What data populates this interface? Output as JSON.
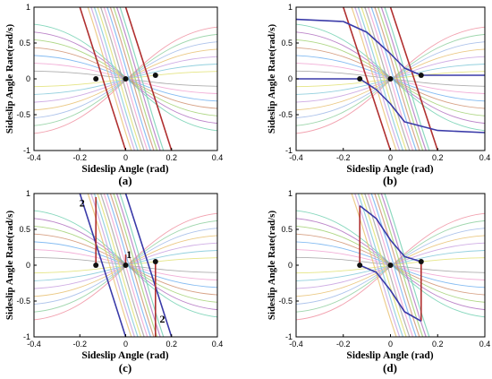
{
  "figure": {
    "panels": [
      {
        "id": "a",
        "caption": "(a)"
      },
      {
        "id": "b",
        "caption": "(b)"
      },
      {
        "id": "c",
        "caption": "(c)"
      },
      {
        "id": "d",
        "caption": "(d)"
      }
    ]
  },
  "chart_data": [
    {
      "type": "line",
      "caption": "(a)",
      "xlabel": "Sideslip Angle (rad)",
      "ylabel": "Sideslip Angle Rate(rad/s)",
      "xlim": [
        -0.4,
        0.4
      ],
      "ylim": [
        -1,
        1
      ],
      "xticks": [
        "-0.4",
        "-0.2",
        "0",
        "0.2",
        "0.4"
      ],
      "yticks": [
        "1",
        "0.5",
        "0",
        "-0.5",
        "-1"
      ],
      "series": [
        {
          "color": "#b03030",
          "style": "boundary-line",
          "x": [
            -0.2,
            0
          ],
          "y": [
            1,
            -1
          ]
        },
        {
          "color": "#b03030",
          "style": "boundary-line",
          "x": [
            0,
            0.2
          ],
          "y": [
            1,
            -1
          ]
        }
      ],
      "points": [
        {
          "x": -0.13,
          "y": 0
        },
        {
          "x": 0.0,
          "y": 0
        },
        {
          "x": 0.13,
          "y": 0.05
        }
      ],
      "annotations": []
    },
    {
      "type": "line",
      "caption": "(b)",
      "xlabel": "Sideslip Angle (rad)",
      "ylabel": "Sideslip Angle Rate(rad/s)",
      "xlim": [
        -0.4,
        0.4
      ],
      "ylim": [
        -1,
        1
      ],
      "xticks": [
        "-0.4",
        "-0.2",
        "0",
        "0.2",
        "0.4"
      ],
      "yticks": [
        "1",
        "0.5",
        "0",
        "-0.5",
        "-1"
      ],
      "series": [
        {
          "color": "#b03030",
          "style": "boundary-line",
          "x": [
            -0.2,
            0
          ],
          "y": [
            1,
            -1
          ]
        },
        {
          "color": "#b03030",
          "style": "boundary-line",
          "x": [
            0,
            0.2
          ],
          "y": [
            1,
            -1
          ]
        },
        {
          "color": "#3a3aa8",
          "style": "separatrix",
          "x": [
            -0.4,
            -0.2,
            -0.1,
            0.0,
            0.06,
            0.13,
            0.4
          ],
          "y": [
            0.83,
            0.8,
            0.65,
            0.35,
            0.15,
            0.05,
            0.05
          ]
        },
        {
          "color": "#3a3aa8",
          "style": "separatrix",
          "x": [
            -0.4,
            -0.13,
            -0.06,
            0.0,
            0.06,
            0.2,
            0.4
          ],
          "y": [
            0.0,
            0.0,
            -0.15,
            -0.35,
            -0.6,
            -0.72,
            -0.75
          ]
        }
      ],
      "points": [
        {
          "x": -0.13,
          "y": 0
        },
        {
          "x": 0.0,
          "y": 0
        },
        {
          "x": 0.13,
          "y": 0.05
        }
      ],
      "annotations": []
    },
    {
      "type": "line",
      "caption": "(c)",
      "xlabel": "Sideslip Angle (rad)",
      "ylabel": "Sideslip Angle Rate(rad/s)",
      "xlim": [
        -0.4,
        0.4
      ],
      "ylim": [
        -1,
        1
      ],
      "xticks": [
        "-0.4",
        "-0.2",
        "0",
        "0.2",
        "0.4"
      ],
      "yticks": [
        "1",
        "0.5",
        "0",
        "-0.5",
        "-1"
      ],
      "series": [
        {
          "color": "#3a3aa8",
          "style": "boundary-line",
          "x": [
            -0.2,
            0
          ],
          "y": [
            1,
            -1
          ]
        },
        {
          "color": "#3a3aa8",
          "style": "boundary-line",
          "x": [
            0,
            0.2
          ],
          "y": [
            1,
            -1
          ]
        },
        {
          "color": "#b03030",
          "style": "region-edge",
          "x": [
            -0.13,
            -0.13
          ],
          "y": [
            0.95,
            0
          ]
        },
        {
          "color": "#b03030",
          "style": "region-edge",
          "x": [
            0.13,
            0.13
          ],
          "y": [
            0.05,
            -1
          ]
        },
        {
          "color": "#b03030",
          "style": "region-edge",
          "x": [
            0.0,
            0.0
          ],
          "y": [
            0.15,
            0
          ]
        }
      ],
      "points": [
        {
          "x": -0.13,
          "y": 0
        },
        {
          "x": 0.0,
          "y": 0
        },
        {
          "x": 0.13,
          "y": 0.05
        }
      ],
      "annotations": [
        {
          "text": "2",
          "x": -0.19,
          "y": 0.82
        },
        {
          "text": "1",
          "x": 0.015,
          "y": 0.1
        },
        {
          "text": "2",
          "x": 0.16,
          "y": -0.8
        }
      ]
    },
    {
      "type": "line",
      "caption": "(d)",
      "xlabel": "Sideslip Angle (rad)",
      "ylabel": "Sideslip Angle Rate(rad/s)",
      "xlim": [
        -0.4,
        0.4
      ],
      "ylim": [
        -1,
        1
      ],
      "xticks": [
        "-0.4",
        "-0.2",
        "0",
        "0.2",
        "0.4"
      ],
      "yticks": [
        "1",
        "0.5",
        "0",
        "-0.5",
        "-1"
      ],
      "series": [
        {
          "color": "#b03030",
          "style": "region-edge",
          "x": [
            -0.13,
            -0.13
          ],
          "y": [
            0,
            0.83
          ]
        },
        {
          "color": "#3a3aa8",
          "style": "separatrix",
          "x": [
            -0.13,
            -0.06,
            0.0,
            0.06,
            0.13
          ],
          "y": [
            0.83,
            0.65,
            0.35,
            0.12,
            0.05
          ]
        },
        {
          "color": "#b03030",
          "style": "region-edge",
          "x": [
            0.13,
            0.13
          ],
          "y": [
            0.05,
            -0.78
          ]
        },
        {
          "color": "#3a3aa8",
          "style": "separatrix",
          "x": [
            -0.13,
            -0.06,
            0.0,
            0.06,
            0.13
          ],
          "y": [
            0.0,
            -0.1,
            -0.35,
            -0.65,
            -0.78
          ]
        }
      ],
      "points": [
        {
          "x": -0.13,
          "y": 0
        },
        {
          "x": 0.0,
          "y": 0
        },
        {
          "x": 0.13,
          "y": 0.05
        }
      ],
      "annotations": []
    }
  ]
}
